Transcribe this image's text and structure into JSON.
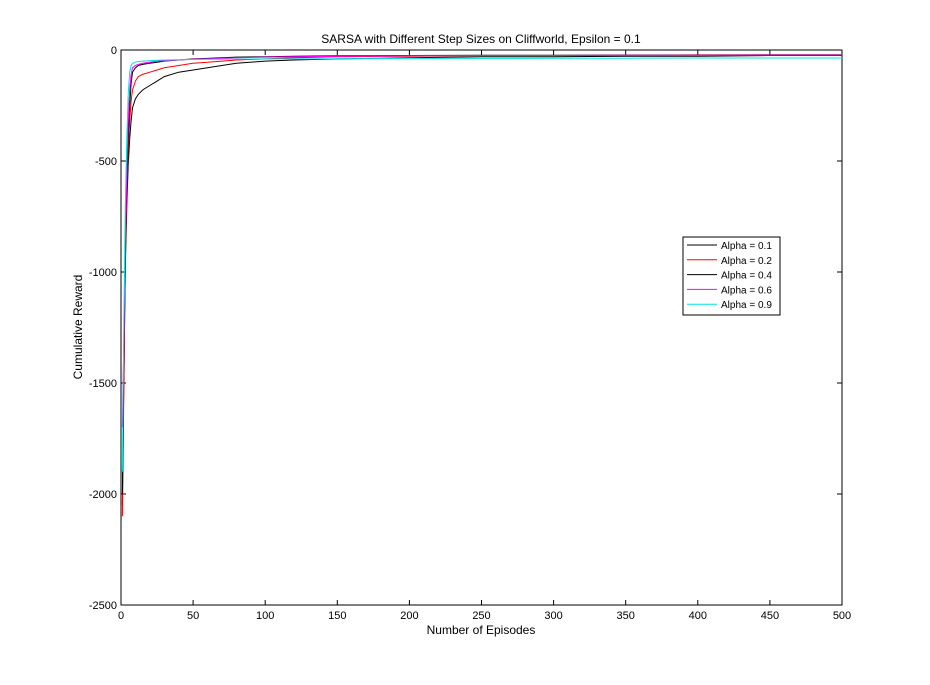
{
  "chart_data": {
    "type": "line",
    "title": "SARSA with Different Step Sizes on Cliffworld, Epsilon = 0.1",
    "xlabel": "Number of Episodes",
    "ylabel": "Cumulative Reward",
    "xlim": [
      0,
      500
    ],
    "ylim": [
      -2500,
      0
    ],
    "xticks": [
      0,
      50,
      100,
      150,
      200,
      250,
      300,
      350,
      400,
      450,
      500
    ],
    "yticks": [
      -2500,
      -2000,
      -1500,
      -1000,
      -500,
      0
    ],
    "xtick_labels": [
      "0",
      "50",
      "100",
      "150",
      "200",
      "250",
      "300",
      "350",
      "400",
      "450",
      "500"
    ],
    "ytick_labels": [
      "-2500",
      "-2000",
      "-1500",
      "-1000",
      "-500",
      "0"
    ],
    "grid": false,
    "legend_position": "right-middle",
    "series": [
      {
        "name": "Alpha = 0.1",
        "color": "#000000",
        "x": [
          1,
          2,
          3,
          4,
          5,
          6,
          7,
          8,
          10,
          12,
          15,
          20,
          25,
          30,
          40,
          50,
          60,
          70,
          80,
          100,
          120,
          150,
          200,
          250,
          300,
          350,
          400,
          450,
          500
        ],
        "y": [
          -2050,
          -1450,
          -980,
          -700,
          -520,
          -400,
          -320,
          -260,
          -220,
          -200,
          -180,
          -160,
          -140,
          -120,
          -100,
          -90,
          -80,
          -70,
          -60,
          -50,
          -45,
          -40,
          -35,
          -30,
          -30,
          -28,
          -28,
          -25,
          -25
        ]
      },
      {
        "name": "Alpha = 0.2",
        "color": "#ff0000",
        "x": [
          1,
          2,
          3,
          4,
          5,
          6,
          7,
          8,
          10,
          12,
          15,
          20,
          25,
          30,
          40,
          50,
          60,
          70,
          80,
          100,
          120,
          150,
          200,
          250,
          300,
          350,
          400,
          450,
          500
        ],
        "y": [
          -2100,
          -1500,
          -950,
          -650,
          -450,
          -320,
          -230,
          -180,
          -140,
          -120,
          -110,
          -100,
          -90,
          -80,
          -70,
          -60,
          -55,
          -50,
          -45,
          -40,
          -35,
          -30,
          -28,
          -25,
          -25,
          -24,
          -22,
          -22,
          -22
        ]
      },
      {
        "name": "Alpha = 0.4",
        "color": "#000000",
        "x": [
          1,
          2,
          3,
          4,
          5,
          6,
          7,
          8,
          10,
          12,
          15,
          20,
          25,
          30,
          40,
          50,
          60,
          70,
          80,
          100,
          120,
          150,
          200,
          250,
          300,
          350,
          400,
          450,
          500
        ],
        "y": [
          -2000,
          -1400,
          -900,
          -600,
          -400,
          -250,
          -150,
          -100,
          -80,
          -70,
          -65,
          -60,
          -55,
          -50,
          -45,
          -40,
          -38,
          -35,
          -32,
          -30,
          -28,
          -26,
          -25,
          -24,
          -24,
          -23,
          -23,
          -22,
          -22
        ]
      },
      {
        "name": "Alpha = 0.6",
        "color": "#ff00ff",
        "x": [
          1,
          2,
          3,
          4,
          5,
          6,
          7,
          8,
          10,
          12,
          15,
          20,
          25,
          30,
          40,
          50,
          60,
          70,
          80,
          100,
          120,
          150,
          200,
          250,
          300,
          350,
          400,
          450,
          500
        ],
        "y": [
          -1700,
          -1300,
          -850,
          -550,
          -320,
          -180,
          -110,
          -80,
          -70,
          -65,
          -60,
          -55,
          -50,
          -48,
          -45,
          -42,
          -40,
          -38,
          -35,
          -32,
          -30,
          -28,
          -26,
          -25,
          -25,
          -24,
          -24,
          -23,
          -23
        ]
      },
      {
        "name": "Alpha = 0.9",
        "color": "#00e0e0",
        "x": [
          1,
          2,
          3,
          4,
          5,
          6,
          7,
          8,
          10,
          12,
          15,
          20,
          25,
          30,
          40,
          50,
          60,
          70,
          80,
          100,
          120,
          150,
          200,
          250,
          300,
          350,
          400,
          450,
          500
        ],
        "y": [
          -1900,
          -1200,
          -700,
          -400,
          -200,
          -100,
          -70,
          -60,
          -55,
          -52,
          -50,
          -48,
          -46,
          -45,
          -44,
          -43,
          -42,
          -42,
          -41,
          -40,
          -40,
          -39,
          -38,
          -38,
          -37,
          -37,
          -36,
          -36,
          -36
        ]
      }
    ]
  }
}
